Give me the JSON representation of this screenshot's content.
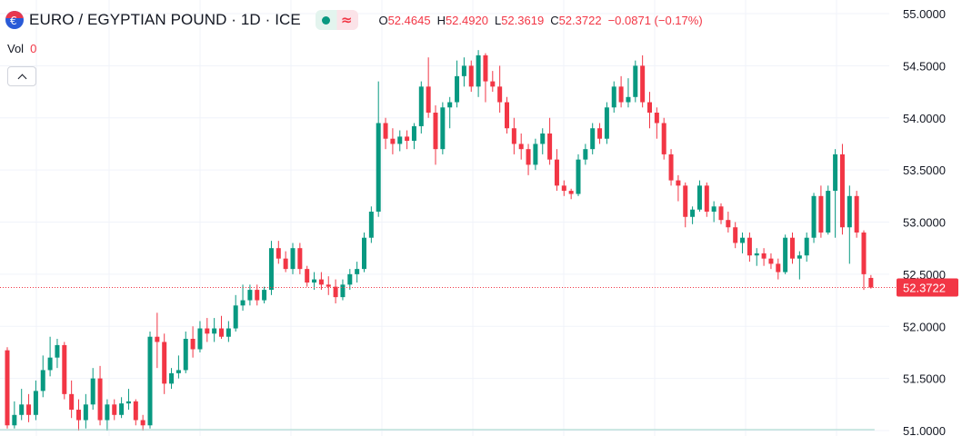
{
  "header": {
    "symbol_title": "EURO / EGYPTIAN POUND · 1D · ICE",
    "flag_icon": "euro-flag-icon",
    "market_status_icon": "market-open-dot-icon",
    "delayed_icon": "delayed-data-icon",
    "ohlc": {
      "o_label": "O",
      "o_value": "52.4645",
      "h_label": "H",
      "h_value": "52.4920",
      "l_label": "L",
      "l_value": "52.3619",
      "c_label": "C",
      "c_value": "52.3722",
      "change": "−0.0871 (−0.17%)"
    }
  },
  "volume": {
    "label": "Vol",
    "value": "0"
  },
  "colors": {
    "up": "#089981",
    "down": "#f23645",
    "grid": "#f0f3fa",
    "axis_text": "#131722",
    "price_line": "#f23645"
  },
  "chart_data": {
    "type": "candlestick",
    "y_axis": {
      "ticks": [
        "55.0000",
        "54.5000",
        "54.0000",
        "53.5000",
        "53.0000",
        "52.5000",
        "52.0000",
        "51.5000",
        "51.0000"
      ],
      "range": [
        51.0,
        55.0
      ],
      "position": "right"
    },
    "last_price": "52.3722",
    "grid": true,
    "candles": [
      [
        51.77,
        51.8,
        51.02,
        51.05
      ],
      [
        51.05,
        51.28,
        51.02,
        51.15
      ],
      [
        51.15,
        51.4,
        51.1,
        51.25
      ],
      [
        51.25,
        51.35,
        51.08,
        51.15
      ],
      [
        51.15,
        51.48,
        51.1,
        51.38
      ],
      [
        51.38,
        51.72,
        51.32,
        51.58
      ],
      [
        51.58,
        51.9,
        51.52,
        51.7
      ],
      [
        51.7,
        51.88,
        51.6,
        51.82
      ],
      [
        51.82,
        51.85,
        51.3,
        51.35
      ],
      [
        51.35,
        51.48,
        51.12,
        51.2
      ],
      [
        51.2,
        51.3,
        51.0,
        51.1
      ],
      [
        51.1,
        51.35,
        51.02,
        51.25
      ],
      [
        51.25,
        51.6,
        51.2,
        51.5
      ],
      [
        51.5,
        51.62,
        51.05,
        51.1
      ],
      [
        51.1,
        51.3,
        51.0,
        51.25
      ],
      [
        51.25,
        51.3,
        51.1,
        51.15
      ],
      [
        51.15,
        51.32,
        51.12,
        51.26
      ],
      [
        51.26,
        51.4,
        51.2,
        51.28
      ],
      [
        51.28,
        51.3,
        51.05,
        51.1
      ],
      [
        51.1,
        51.15,
        51.0,
        51.05
      ],
      [
        51.05,
        51.95,
        51.02,
        51.9
      ],
      [
        51.9,
        52.13,
        51.6,
        51.85
      ],
      [
        51.85,
        51.93,
        51.35,
        51.45
      ],
      [
        51.45,
        51.6,
        51.4,
        51.55
      ],
      [
        51.55,
        51.72,
        51.5,
        51.58
      ],
      [
        51.58,
        51.95,
        51.55,
        51.88
      ],
      [
        51.88,
        52.0,
        51.7,
        51.78
      ],
      [
        51.78,
        52.05,
        51.75,
        51.98
      ],
      [
        51.98,
        52.08,
        51.85,
        51.93
      ],
      [
        51.93,
        52.08,
        51.85,
        51.98
      ],
      [
        51.98,
        52.1,
        51.88,
        51.9
      ],
      [
        51.9,
        52.05,
        51.85,
        51.98
      ],
      [
        51.98,
        52.3,
        51.95,
        52.2
      ],
      [
        52.2,
        52.4,
        52.15,
        52.25
      ],
      [
        52.25,
        52.4,
        52.2,
        52.35
      ],
      [
        52.35,
        52.4,
        52.2,
        52.25
      ],
      [
        52.25,
        52.38,
        52.22,
        52.35
      ],
      [
        52.35,
        52.82,
        52.3,
        52.75
      ],
      [
        52.75,
        52.82,
        52.6,
        52.65
      ],
      [
        52.65,
        52.72,
        52.52,
        52.55
      ],
      [
        52.55,
        52.8,
        52.5,
        52.75
      ],
      [
        52.75,
        52.8,
        52.5,
        52.55
      ],
      [
        52.55,
        52.58,
        52.38,
        52.42
      ],
      [
        52.42,
        52.52,
        52.35,
        52.45
      ],
      [
        52.45,
        52.52,
        52.35,
        52.4
      ],
      [
        52.4,
        52.48,
        52.3,
        52.38
      ],
      [
        52.38,
        52.45,
        52.22,
        52.28
      ],
      [
        52.28,
        52.45,
        52.25,
        52.4
      ],
      [
        52.4,
        52.55,
        52.35,
        52.5
      ],
      [
        52.5,
        52.62,
        52.42,
        52.55
      ],
      [
        52.55,
        52.9,
        52.52,
        52.85
      ],
      [
        52.85,
        53.15,
        52.8,
        53.1
      ],
      [
        53.1,
        54.35,
        53.05,
        53.95
      ],
      [
        53.95,
        54.0,
        53.7,
        53.8
      ],
      [
        53.8,
        53.9,
        53.65,
        53.75
      ],
      [
        53.75,
        53.88,
        53.68,
        53.82
      ],
      [
        53.82,
        53.88,
        53.7,
        53.78
      ],
      [
        53.78,
        53.95,
        53.7,
        53.92
      ],
      [
        53.92,
        54.35,
        53.85,
        54.3
      ],
      [
        54.3,
        54.58,
        54.0,
        54.05
      ],
      [
        54.05,
        54.12,
        53.55,
        53.7
      ],
      [
        53.7,
        54.15,
        53.65,
        54.1
      ],
      [
        54.1,
        54.2,
        53.9,
        54.15
      ],
      [
        54.15,
        54.55,
        54.1,
        54.4
      ],
      [
        54.4,
        54.58,
        54.3,
        54.5
      ],
      [
        54.5,
        54.55,
        54.25,
        54.3
      ],
      [
        54.3,
        54.65,
        54.2,
        54.6
      ],
      [
        54.6,
        54.62,
        54.15,
        54.35
      ],
      [
        54.35,
        54.45,
        54.25,
        54.3
      ],
      [
        54.3,
        54.5,
        54.05,
        54.15
      ],
      [
        54.15,
        54.2,
        53.85,
        53.9
      ],
      [
        53.9,
        54.0,
        53.65,
        53.75
      ],
      [
        53.75,
        53.85,
        53.6,
        53.7
      ],
      [
        53.7,
        53.75,
        53.45,
        53.55
      ],
      [
        53.55,
        53.8,
        53.5,
        53.75
      ],
      [
        53.75,
        53.9,
        53.65,
        53.85
      ],
      [
        53.85,
        54.0,
        53.55,
        53.6
      ],
      [
        53.6,
        53.7,
        53.3,
        53.35
      ],
      [
        53.35,
        53.4,
        53.25,
        53.3
      ],
      [
        53.3,
        53.32,
        53.22,
        53.27
      ],
      [
        53.27,
        53.65,
        53.25,
        53.6
      ],
      [
        53.6,
        53.75,
        53.55,
        53.7
      ],
      [
        53.7,
        53.95,
        53.65,
        53.9
      ],
      [
        53.9,
        53.95,
        53.75,
        53.8
      ],
      [
        53.8,
        54.15,
        53.75,
        54.1
      ],
      [
        54.1,
        54.35,
        54.05,
        54.3
      ],
      [
        54.3,
        54.4,
        54.1,
        54.15
      ],
      [
        54.15,
        54.38,
        54.1,
        54.2
      ],
      [
        54.2,
        54.55,
        54.15,
        54.5
      ],
      [
        54.5,
        54.6,
        54.1,
        54.15
      ],
      [
        54.15,
        54.25,
        53.9,
        54.05
      ],
      [
        54.05,
        54.1,
        53.8,
        53.95
      ],
      [
        53.95,
        54.0,
        53.6,
        53.65
      ],
      [
        53.65,
        53.7,
        53.35,
        53.4
      ],
      [
        53.4,
        53.45,
        53.2,
        53.35
      ],
      [
        53.35,
        53.38,
        52.95,
        53.05
      ],
      [
        53.05,
        53.15,
        52.98,
        53.12
      ],
      [
        53.12,
        53.4,
        53.1,
        53.35
      ],
      [
        53.35,
        53.38,
        53.05,
        53.1
      ],
      [
        53.1,
        53.2,
        53.0,
        53.15
      ],
      [
        53.15,
        53.18,
        52.98,
        53.02
      ],
      [
        53.02,
        53.1,
        52.9,
        52.95
      ],
      [
        52.95,
        53.0,
        52.75,
        52.8
      ],
      [
        52.8,
        52.9,
        52.7,
        52.85
      ],
      [
        52.85,
        52.9,
        52.62,
        52.68
      ],
      [
        52.68,
        52.75,
        52.58,
        52.7
      ],
      [
        52.7,
        52.75,
        52.58,
        52.65
      ],
      [
        52.65,
        52.7,
        52.55,
        52.6
      ],
      [
        52.6,
        52.65,
        52.45,
        52.52
      ],
      [
        52.52,
        52.88,
        52.5,
        52.85
      ],
      [
        52.85,
        52.9,
        52.6,
        52.65
      ],
      [
        52.65,
        52.72,
        52.45,
        52.68
      ],
      [
        52.68,
        52.9,
        52.62,
        52.85
      ],
      [
        52.85,
        53.28,
        52.8,
        53.25
      ],
      [
        53.25,
        53.35,
        52.85,
        52.9
      ],
      [
        52.9,
        53.35,
        52.88,
        53.3
      ],
      [
        53.3,
        53.7,
        52.85,
        53.65
      ],
      [
        53.65,
        53.75,
        52.88,
        52.95
      ],
      [
        52.95,
        53.35,
        52.6,
        53.25
      ],
      [
        53.25,
        53.3,
        52.85,
        52.9
      ],
      [
        52.9,
        52.92,
        52.35,
        52.5
      ],
      [
        52.4645,
        52.492,
        52.3619,
        52.3722
      ]
    ]
  }
}
